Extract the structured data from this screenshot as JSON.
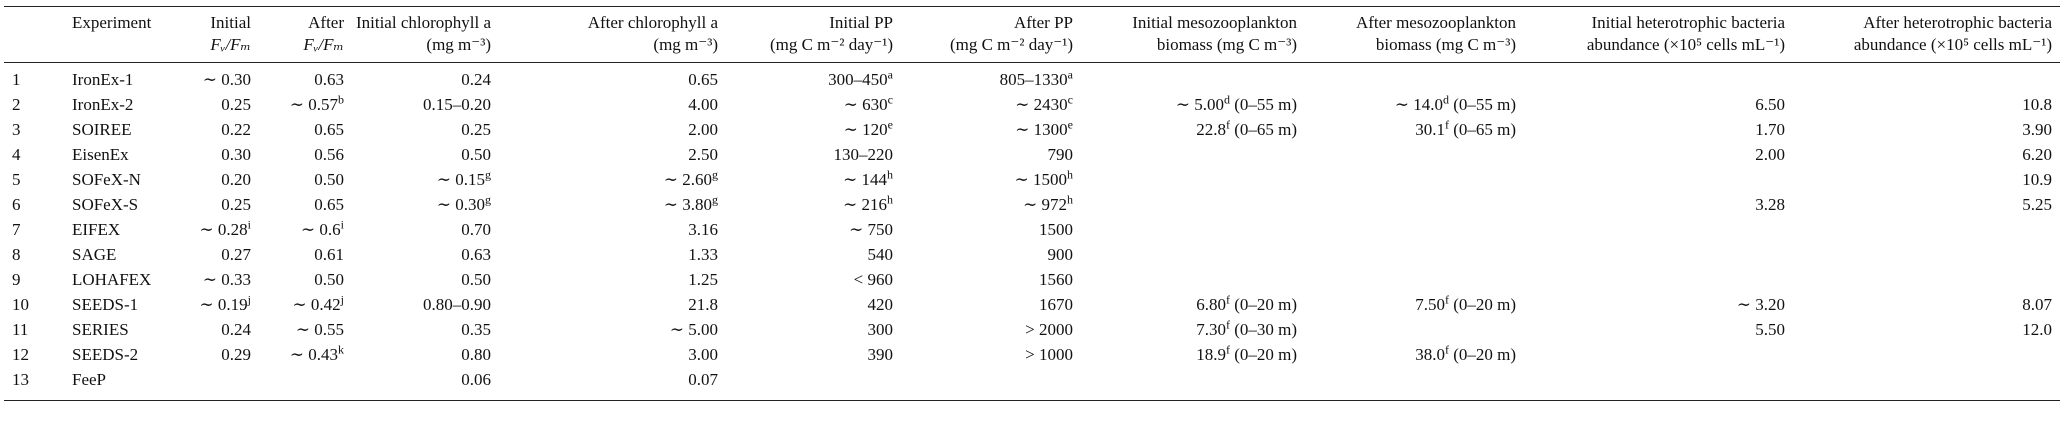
{
  "table": {
    "header": [
      null,
      [
        "Experiment"
      ],
      [
        "Initial",
        "Fᵥ/Fₘ"
      ],
      [
        "After",
        "Fᵥ/Fₘ"
      ],
      [
        "Initial chlorophyll a",
        "(mg m⁻³)"
      ],
      [
        "After chlorophyll a",
        "(mg m⁻³)"
      ],
      [
        "Initial PP",
        "(mg C m⁻² day⁻¹)"
      ],
      [
        "After PP",
        "(mg C m⁻² day⁻¹)"
      ],
      [
        "Initial mesozooplankton",
        "biomass (mg C m⁻³)"
      ],
      [
        "After mesozooplankton",
        "biomass (mg C m⁻³)"
      ],
      [
        "Initial heterotrophic bacteria",
        "abundance (×10⁵ cells mL⁻¹)"
      ],
      [
        "After heterotrophic bacteria",
        "abundance (×10⁵ cells mL⁻¹)"
      ]
    ],
    "rows": [
      [
        "1",
        "IronEx-1",
        "∼ 0.30",
        "0.63",
        "0.24",
        "0.65",
        {
          "value": "300–450",
          "note": "a"
        },
        {
          "value": "805–1330",
          "note": "a"
        },
        null,
        null,
        null,
        null
      ],
      [
        "2",
        "IronEx-2",
        "0.25",
        {
          "value": "∼ 0.57",
          "note": "b"
        },
        "0.15–0.20",
        "4.00",
        {
          "value": "∼ 630",
          "note": "c"
        },
        {
          "value": "∼ 2430",
          "note": "c"
        },
        {
          "value": "∼ 5.00",
          "note": "d",
          "suffix": " (0–55 m)"
        },
        {
          "value": "∼ 14.0",
          "note": "d",
          "suffix": " (0–55 m)"
        },
        "6.50",
        "10.8"
      ],
      [
        "3",
        "SOIREE",
        "0.22",
        "0.65",
        "0.25",
        "2.00",
        {
          "value": "∼ 120",
          "note": "e"
        },
        {
          "value": "∼ 1300",
          "note": "e"
        },
        {
          "value": "22.8",
          "note": "f",
          "suffix": " (0–65 m)"
        },
        {
          "value": "30.1",
          "note": "f",
          "suffix": " (0–65 m)"
        },
        "1.70",
        "3.90"
      ],
      [
        "4",
        "EisenEx",
        "0.30",
        "0.56",
        "0.50",
        "2.50",
        "130–220",
        "790",
        null,
        null,
        "2.00",
        "6.20"
      ],
      [
        "5",
        "SOFeX-N",
        "0.20",
        "0.50",
        {
          "value": "∼ 0.15",
          "note": "g"
        },
        {
          "value": "∼ 2.60",
          "note": "g"
        },
        {
          "value": "∼ 144",
          "note": "h"
        },
        {
          "value": "∼ 1500",
          "note": "h"
        },
        null,
        null,
        null,
        "10.9"
      ],
      [
        "6",
        "SOFeX-S",
        "0.25",
        "0.65",
        {
          "value": "∼ 0.30",
          "note": "g"
        },
        {
          "value": "∼ 3.80",
          "note": "g"
        },
        {
          "value": "∼ 216",
          "note": "h"
        },
        {
          "value": "∼ 972",
          "note": "h"
        },
        null,
        null,
        "3.28",
        "5.25"
      ],
      [
        "7",
        "EIFEX",
        {
          "value": "∼ 0.28",
          "note": "i"
        },
        {
          "value": "∼ 0.6",
          "note": "i"
        },
        "0.70",
        "3.16",
        "∼ 750",
        "1500",
        null,
        null,
        null,
        null
      ],
      [
        "8",
        "SAGE",
        "0.27",
        "0.61",
        "0.63",
        "1.33",
        "540",
        "900",
        null,
        null,
        null,
        null
      ],
      [
        "9",
        "LOHAFEX",
        "∼ 0.33",
        "0.50",
        "0.50",
        "1.25",
        "< 960",
        "1560",
        null,
        null,
        null,
        null
      ],
      [
        "10",
        "SEEDS-1",
        {
          "value": "∼ 0.19",
          "note": "j"
        },
        {
          "value": "∼ 0.42",
          "note": "j"
        },
        "0.80–0.90",
        "21.8",
        "420",
        "1670",
        {
          "value": "6.80",
          "note": "f",
          "suffix": " (0–20 m)"
        },
        {
          "value": "7.50",
          "note": "f",
          "suffix": " (0–20 m)"
        },
        "∼ 3.20",
        "8.07"
      ],
      [
        "11",
        "SERIES",
        "0.24",
        "∼ 0.55",
        "0.35",
        "∼ 5.00",
        "300",
        "> 2000",
        {
          "value": "7.30",
          "note": "f",
          "suffix": " (0–30 m)"
        },
        null,
        "5.50",
        "12.0"
      ],
      [
        "12",
        "SEEDS-2",
        "0.29",
        {
          "value": "∼ 0.43",
          "note": "k"
        },
        "0.80",
        "3.00",
        "390",
        "> 1000",
        {
          "value": "18.9",
          "note": "f",
          "suffix": " (0–20 m)"
        },
        {
          "value": "38.0",
          "note": "f",
          "suffix": " (0–20 m)"
        },
        null,
        null
      ],
      [
        "13",
        "FeeP",
        null,
        null,
        "0.06",
        "0.07",
        null,
        null,
        null,
        null,
        null,
        null
      ]
    ]
  }
}
